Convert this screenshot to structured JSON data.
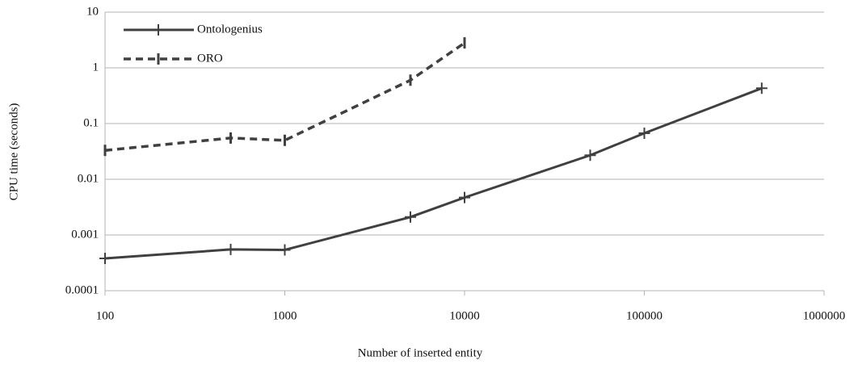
{
  "chart_data": {
    "type": "line",
    "x_label": "Number of inserted entity",
    "y_label": "CPU time (seconds)",
    "log_x": true,
    "log_y": true,
    "grid": true,
    "legend": "top-left",
    "xlim": [
      100,
      1000000
    ],
    "xticks": [
      100,
      1000,
      10000,
      100000,
      1000000
    ],
    "ylim": [
      0.0001,
      10
    ],
    "yticks": [
      0.0001,
      0.001,
      0.01,
      0.1,
      1,
      10
    ],
    "series": [
      {
        "name": "Ontologenius",
        "color": "#404040",
        "dash": false,
        "x": [
          100,
          500,
          1000,
          5000,
          10000,
          50000,
          100000,
          450000
        ],
        "values": [
          0.00038,
          0.00055,
          0.00054,
          0.0021,
          0.0047,
          0.027,
          0.067,
          0.43
        ]
      },
      {
        "name": "ORO",
        "color": "#404040",
        "dash": true,
        "x": [
          100,
          500,
          1000,
          5000,
          10000
        ],
        "values": [
          0.033,
          0.055,
          0.05,
          0.6,
          2.8
        ]
      }
    ]
  }
}
